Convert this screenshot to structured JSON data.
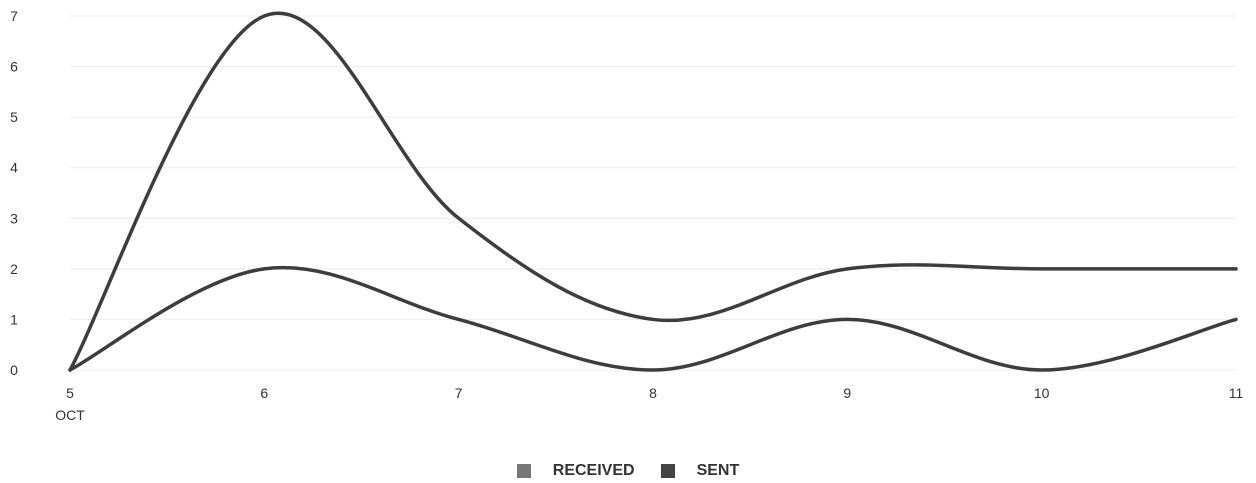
{
  "chart_data": {
    "type": "line",
    "x_ticks": [
      "5",
      "6",
      "7",
      "8",
      "9",
      "10",
      "11"
    ],
    "x_sublabel": "OCT",
    "x": [
      5,
      6,
      7,
      8,
      9,
      10,
      11
    ],
    "ylim": [
      0,
      7
    ],
    "y_ticks": [
      "0",
      "1",
      "2",
      "3",
      "4",
      "5",
      "6",
      "7"
    ],
    "grid": true,
    "legend_position": "bottom",
    "series": [
      {
        "name": "RECEIVED",
        "values": [
          0,
          7,
          3,
          1,
          2,
          2,
          2
        ],
        "color": "#777777"
      },
      {
        "name": "SENT",
        "values": [
          0,
          2,
          1,
          0,
          1,
          0,
          1
        ],
        "color": "#444444"
      }
    ]
  },
  "legend": {
    "received_label": "RECEIVED",
    "sent_label": "SENT"
  }
}
